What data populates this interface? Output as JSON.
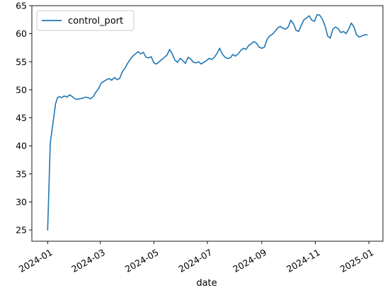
{
  "chart_data": {
    "type": "line",
    "xlabel": "date",
    "ylabel": "",
    "xlim": [
      "2023-12-14",
      "2025-01-17"
    ],
    "ylim": [
      23.0,
      65.0
    ],
    "x_tick_labels": [
      "2024-01",
      "2024-03",
      "2024-05",
      "2024-07",
      "2024-09",
      "2024-11",
      "2025-01"
    ],
    "x_tick_dates": [
      "2024-01-01",
      "2024-03-01",
      "2024-05-01",
      "2024-07-01",
      "2024-09-01",
      "2024-11-01",
      "2025-01-01"
    ],
    "y_ticks": [
      25,
      30,
      35,
      40,
      45,
      50,
      55,
      60,
      65
    ],
    "grid": false,
    "legend_position": "top-left",
    "colors": {
      "series": "#1f77b4",
      "axis": "#000000"
    },
    "series": [
      {
        "name": "control_port",
        "x": [
          "2024-01-01",
          "2024-01-04",
          "2024-01-07",
          "2024-01-10",
          "2024-01-12",
          "2024-01-14",
          "2024-01-17",
          "2024-01-20",
          "2024-01-23",
          "2024-01-26",
          "2024-01-29",
          "2024-02-01",
          "2024-02-04",
          "2024-02-07",
          "2024-02-10",
          "2024-02-13",
          "2024-02-16",
          "2024-02-19",
          "2024-02-22",
          "2024-02-25",
          "2024-02-28",
          "2024-03-02",
          "2024-03-05",
          "2024-03-08",
          "2024-03-11",
          "2024-03-14",
          "2024-03-17",
          "2024-03-20",
          "2024-03-23",
          "2024-03-26",
          "2024-03-29",
          "2024-04-01",
          "2024-04-04",
          "2024-04-07",
          "2024-04-10",
          "2024-04-13",
          "2024-04-16",
          "2024-04-19",
          "2024-04-22",
          "2024-04-25",
          "2024-04-28",
          "2024-05-01",
          "2024-05-04",
          "2024-05-07",
          "2024-05-10",
          "2024-05-13",
          "2024-05-16",
          "2024-05-19",
          "2024-05-22",
          "2024-05-25",
          "2024-05-28",
          "2024-05-31",
          "2024-06-03",
          "2024-06-06",
          "2024-06-09",
          "2024-06-12",
          "2024-06-15",
          "2024-06-18",
          "2024-06-21",
          "2024-06-24",
          "2024-06-27",
          "2024-06-30",
          "2024-07-03",
          "2024-07-06",
          "2024-07-09",
          "2024-07-12",
          "2024-07-15",
          "2024-07-18",
          "2024-07-21",
          "2024-07-24",
          "2024-07-27",
          "2024-07-30",
          "2024-08-02",
          "2024-08-05",
          "2024-08-08",
          "2024-08-11",
          "2024-08-14",
          "2024-08-17",
          "2024-08-20",
          "2024-08-23",
          "2024-08-26",
          "2024-08-29",
          "2024-09-01",
          "2024-09-04",
          "2024-09-07",
          "2024-09-10",
          "2024-09-13",
          "2024-09-16",
          "2024-09-19",
          "2024-09-22",
          "2024-09-25",
          "2024-09-28",
          "2024-10-01",
          "2024-10-04",
          "2024-10-07",
          "2024-10-10",
          "2024-10-13",
          "2024-10-16",
          "2024-10-19",
          "2024-10-22",
          "2024-10-25",
          "2024-10-28",
          "2024-10-31",
          "2024-11-03",
          "2024-11-06",
          "2024-11-09",
          "2024-11-12",
          "2024-11-15",
          "2024-11-18",
          "2024-11-21",
          "2024-11-24",
          "2024-11-27",
          "2024-11-30",
          "2024-12-03",
          "2024-12-06",
          "2024-12-09",
          "2024-12-12",
          "2024-12-15",
          "2024-12-18",
          "2024-12-21",
          "2024-12-24",
          "2024-12-27",
          "2024-12-30"
        ],
        "y": [
          25.0,
          40.5,
          44.0,
          47.5,
          48.5,
          48.8,
          48.6,
          48.9,
          48.7,
          49.1,
          48.8,
          48.4,
          48.3,
          48.4,
          48.5,
          48.7,
          48.6,
          48.4,
          48.8,
          49.6,
          50.2,
          51.2,
          51.5,
          51.8,
          52.0,
          51.7,
          52.2,
          51.8,
          52.0,
          53.2,
          53.8,
          54.7,
          55.4,
          56.0,
          56.4,
          56.8,
          56.4,
          56.7,
          55.8,
          55.7,
          55.9,
          54.8,
          54.6,
          55.0,
          55.4,
          55.8,
          56.2,
          57.2,
          56.4,
          55.3,
          54.9,
          55.6,
          55.2,
          54.7,
          55.8,
          55.5,
          54.9,
          54.8,
          55.0,
          54.6,
          54.9,
          55.2,
          55.6,
          55.4,
          55.8,
          56.5,
          57.4,
          56.4,
          55.8,
          55.6,
          55.7,
          56.3,
          56.0,
          56.4,
          57.0,
          57.4,
          57.2,
          57.9,
          58.2,
          58.6,
          58.3,
          57.6,
          57.4,
          57.6,
          59.0,
          59.6,
          59.9,
          60.4,
          61.0,
          61.3,
          61.0,
          60.8,
          61.2,
          62.4,
          61.8,
          60.6,
          60.4,
          61.5,
          62.5,
          62.8,
          63.2,
          62.4,
          62.2,
          63.4,
          63.3,
          62.6,
          61.4,
          59.6,
          59.2,
          60.8,
          61.2,
          60.9,
          60.2,
          60.4,
          60.0,
          60.8,
          61.9,
          61.2,
          59.8,
          59.4,
          59.6,
          59.8,
          59.8
        ]
      }
    ]
  }
}
